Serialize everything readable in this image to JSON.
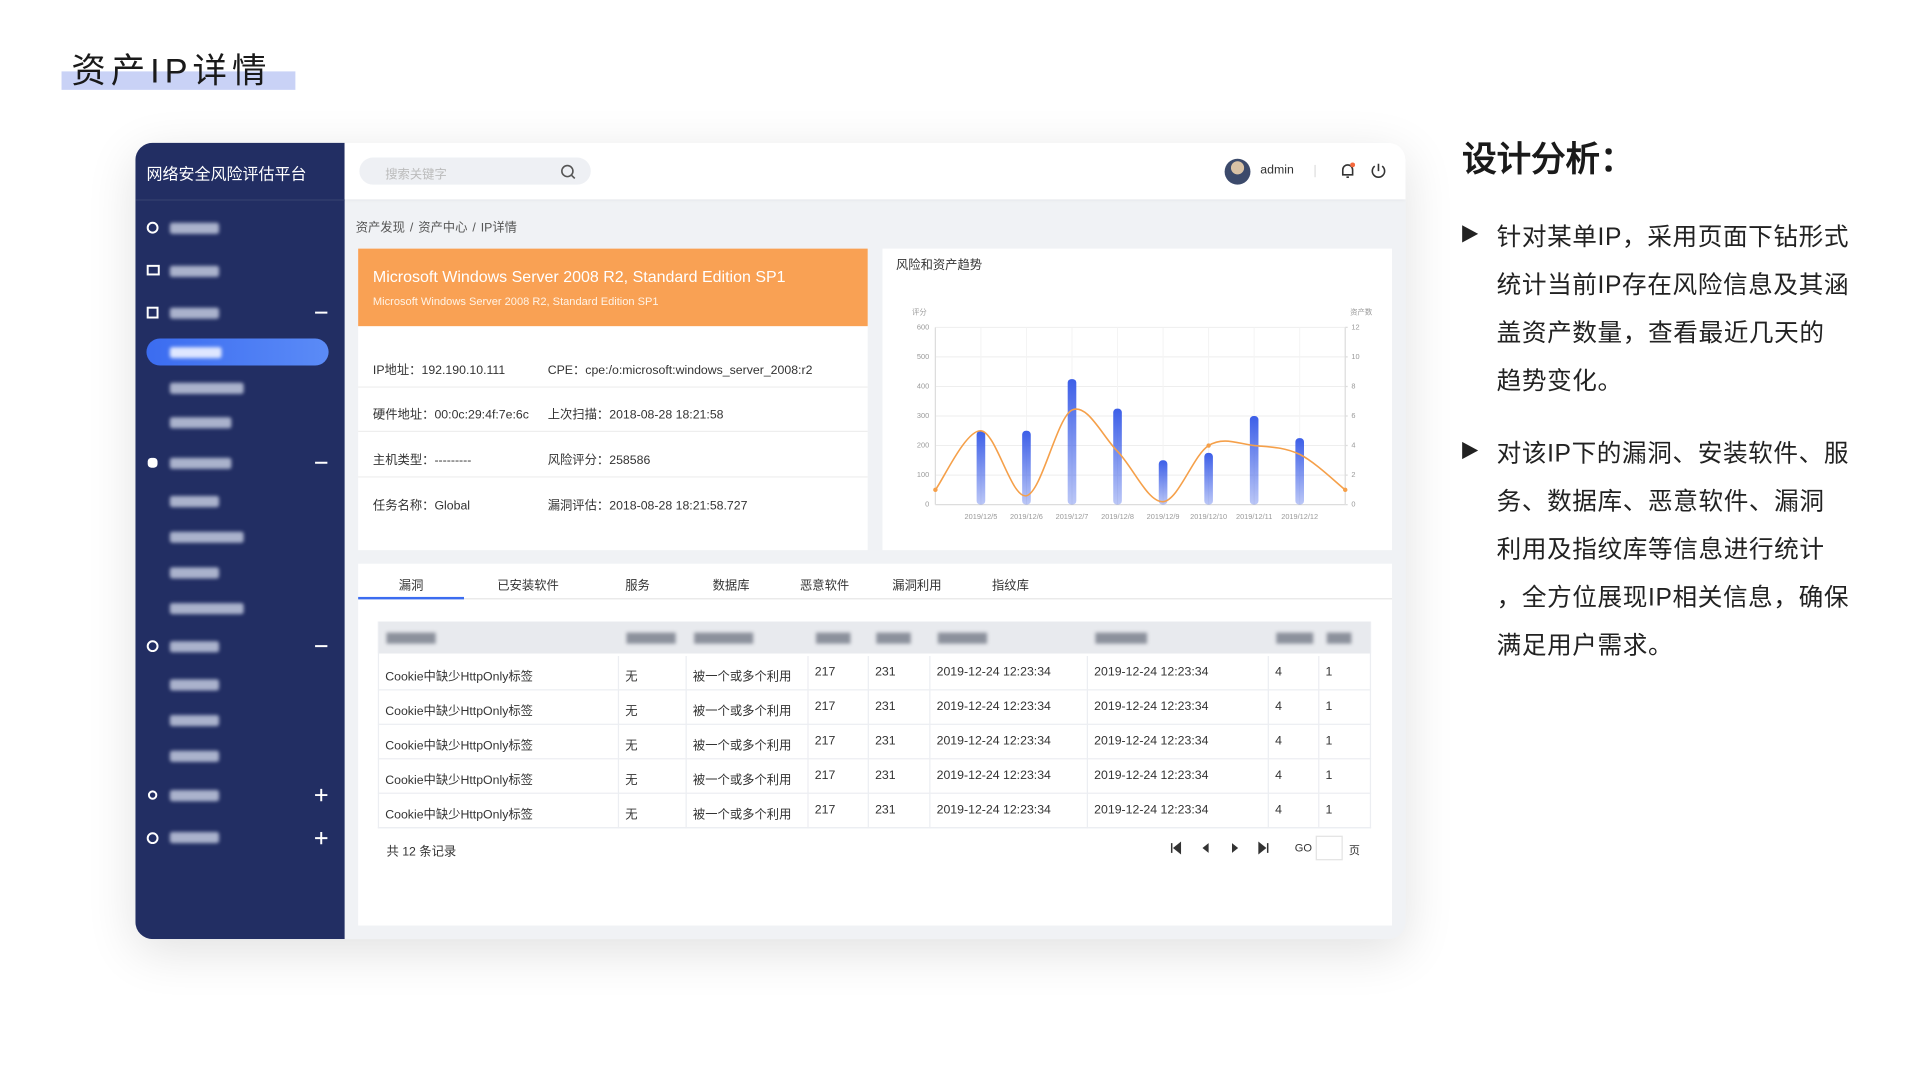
{
  "page": {
    "title": "资产IP详情"
  },
  "app": {
    "name": "网络安全风险评估平台",
    "search_placeholder": "搜索关键字",
    "user": "admin",
    "breadcrumb": [
      "资产发现",
      "资产中心",
      "IP详情"
    ],
    "breadcrumb_sep": "/"
  },
  "asset": {
    "title": "Microsoft Windows Server 2008 R2, Standard Edition SP1",
    "subtitle": "Microsoft Windows Server 2008 R2, Standard Edition SP1",
    "fields": [
      [
        {
          "label": "IP地址：",
          "value": "192.190.10.111"
        },
        {
          "label": "CPE：",
          "value": "cpe:/o:microsoft:windows_server_2008:r2"
        }
      ],
      [
        {
          "label": "硬件地址：",
          "value": "00:0c:29:4f:7e:6c"
        },
        {
          "label": "上次扫描：",
          "value": "2018-08-28 18:21:58"
        }
      ],
      [
        {
          "label": "主机类型：",
          "value": "---------"
        },
        {
          "label": "风险评分：",
          "value": "258586"
        }
      ],
      [
        {
          "label": "任务名称：",
          "value": "Global"
        },
        {
          "label": "漏洞评估：",
          "value": "2018-08-28 18:21:58.727"
        }
      ]
    ]
  },
  "chart_data": {
    "type": "bar",
    "title": "风险和资产趋势",
    "ylabel": "评分",
    "y2label": "资产数",
    "categories": [
      null,
      "2019/12/5",
      "2019/12/6",
      "2019/12/7",
      "2019/12/8",
      "2019/12/9",
      "2019/12/10",
      "2019/12/11",
      "2019/12/12",
      null
    ],
    "series": [
      {
        "type": "bar",
        "axis": "y2",
        "color": "#3d5fe8",
        "values": [
          null,
          5,
          5,
          8.5,
          6.5,
          3,
          3.5,
          6,
          4.5,
          null
        ]
      },
      {
        "type": "line",
        "color": "#f5a04a",
        "values": [
          50,
          250,
          30,
          320,
          180,
          10,
          200,
          200,
          170,
          50
        ]
      }
    ],
    "ylim": [
      0,
      600
    ],
    "yticks": [
      0,
      100,
      200,
      300,
      400,
      500,
      600
    ],
    "y2lim": [
      0,
      12
    ],
    "y2ticks": [
      0,
      2,
      4,
      6,
      8,
      10,
      12
    ],
    "grid": true
  },
  "tabs": [
    "漏洞",
    "已安装软件",
    "服务",
    "数据库",
    "恶意软件",
    "漏洞利用",
    "指纹库"
  ],
  "table": {
    "rows": [
      [
        "Cookie中缺少HttpOnly标签",
        "无",
        "被一个或多个利用",
        "217",
        "231",
        "2019-12-24 12:23:34",
        "2019-12-24 12:23:34",
        "4",
        "1"
      ],
      [
        "Cookie中缺少HttpOnly标签",
        "无",
        "被一个或多个利用",
        "217",
        "231",
        "2019-12-24 12:23:34",
        "2019-12-24 12:23:34",
        "4",
        "1"
      ],
      [
        "Cookie中缺少HttpOnly标签",
        "无",
        "被一个或多个利用",
        "217",
        "231",
        "2019-12-24 12:23:34",
        "2019-12-24 12:23:34",
        "4",
        "1"
      ],
      [
        "Cookie中缺少HttpOnly标签",
        "无",
        "被一个或多个利用",
        "217",
        "231",
        "2019-12-24 12:23:34",
        "2019-12-24 12:23:34",
        "4",
        "1"
      ],
      [
        "Cookie中缺少HttpOnly标签",
        "无",
        "被一个或多个利用",
        "217",
        "231",
        "2019-12-24 12:23:34",
        "2019-12-24 12:23:34",
        "4",
        "1"
      ]
    ],
    "total": "共 12 条记录",
    "go": "GO",
    "page_unit": "页"
  },
  "analysis": {
    "heading": "设计分析：",
    "bullets": [
      [
        "针对某单IP，采用页面下钻形式",
        "统计当前IP存在风险信息及其涵",
        "盖资产数量，查看最近几天的",
        "趋势变化。"
      ],
      [
        "对该IP下的漏洞、安装软件、服",
        "务、数据库、恶意软件、漏洞",
        "利用及指纹库等信息进行统计",
        "，全方位展现IP相关信息，确保",
        "满足用户需求。"
      ]
    ]
  }
}
